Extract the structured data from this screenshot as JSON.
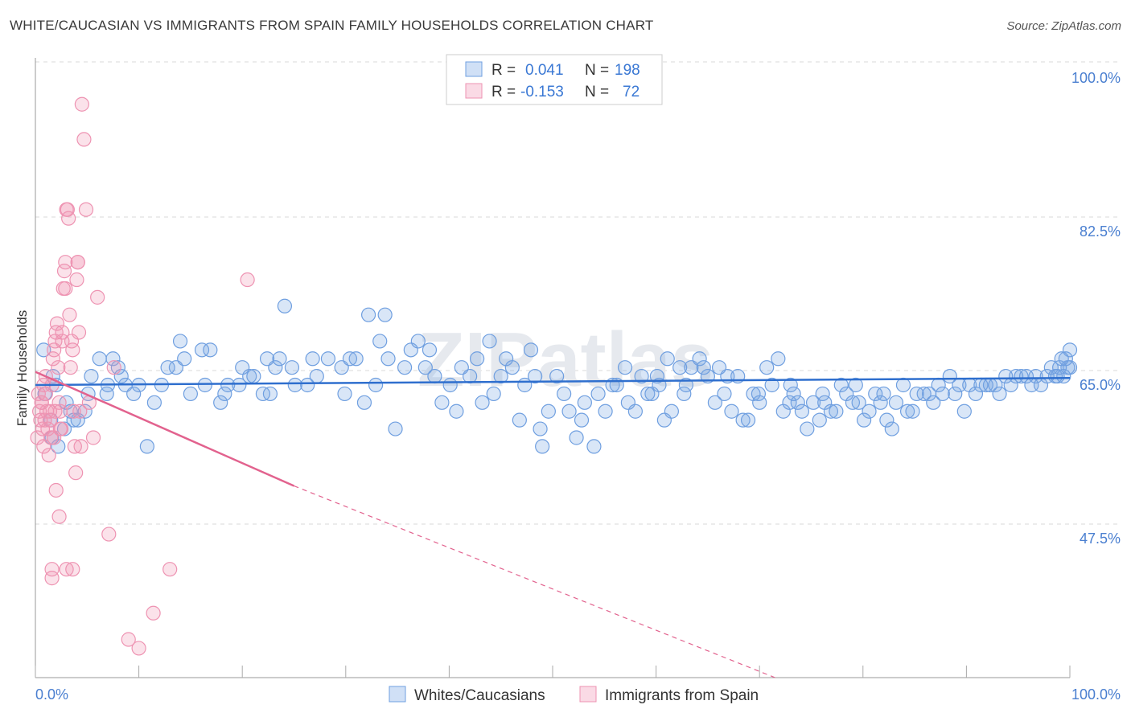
{
  "title": "WHITE/CAUCASIAN VS IMMIGRANTS FROM SPAIN FAMILY HOUSEHOLDS CORRELATION CHART",
  "source": "Source: ZipAtlas.com",
  "watermark": "ZIPatlas",
  "colors": {
    "blue_fill": "rgba(120,166,228,0.28)",
    "blue_stroke": "#6f9fe0",
    "blue_line": "#2f6fce",
    "pink_fill": "rgba(240,150,180,0.28)",
    "pink_stroke": "#ee93b2",
    "pink_line": "#e2628e",
    "grid": "#d9d9d9",
    "axis_label": "#4a7fd0"
  },
  "legend": {
    "rows": [
      {
        "r_label": "R =",
        "r_value": "0.041",
        "n_label": "N =",
        "n_value": "198",
        "series": "blue"
      },
      {
        "r_label": "R =",
        "r_value": "-0.153",
        "n_label": "N =",
        "n_value": "72",
        "series": "pink"
      }
    ]
  },
  "bottom_legend": [
    "Whites/Caucasians",
    "Immigrants from Spain"
  ],
  "chart_data": {
    "type": "scatter",
    "title": "WHITE/CAUCASIAN VS IMMIGRANTS FROM SPAIN FAMILY HOUSEHOLDS CORRELATION CHART",
    "xlabel": "",
    "ylabel": "Family Households",
    "xlim": [
      0,
      100
    ],
    "ylim": [
      30,
      100
    ],
    "x_tick_labels": [
      "0.0%",
      "100.0%"
    ],
    "y_tick_labels": [
      "100.0%",
      "82.5%",
      "65.0%",
      "47.5%"
    ],
    "y_ticks": [
      100,
      82.5,
      65,
      47.5
    ],
    "grid": true,
    "legend_position": "top-center",
    "series": [
      {
        "name": "Whites/Caucasians",
        "color": "blue",
        "R": 0.041,
        "N": 198,
        "trend": {
          "x": [
            0,
            100
          ],
          "y": [
            65.0,
            65.8
          ]
        },
        "points": [
          [
            0.8,
            69
          ],
          [
            0.9,
            64
          ],
          [
            1.5,
            61
          ],
          [
            1.6,
            59
          ],
          [
            1.7,
            66
          ],
          [
            2.0,
            65
          ],
          [
            2.2,
            58
          ],
          [
            2.8,
            60
          ],
          [
            3.0,
            63
          ],
          [
            3.4,
            62
          ],
          [
            3.7,
            61
          ],
          [
            4.1,
            61
          ],
          [
            4.8,
            62
          ],
          [
            5.1,
            64
          ],
          [
            5.4,
            66
          ],
          [
            6.2,
            68
          ],
          [
            6.9,
            64
          ],
          [
            7.0,
            65
          ],
          [
            7.5,
            68
          ],
          [
            8.0,
            67
          ],
          [
            8.3,
            66
          ],
          [
            8.7,
            65
          ],
          [
            9.5,
            64
          ],
          [
            10.0,
            65
          ],
          [
            10.8,
            58
          ],
          [
            11.5,
            63
          ],
          [
            12.2,
            65
          ],
          [
            12.8,
            67
          ],
          [
            13.6,
            67
          ],
          [
            14.0,
            70
          ],
          [
            14.4,
            68
          ],
          [
            15.0,
            64
          ],
          [
            16.1,
            69
          ],
          [
            16.4,
            65
          ],
          [
            16.9,
            69
          ],
          [
            17.9,
            63
          ],
          [
            18.3,
            64
          ],
          [
            18.6,
            65
          ],
          [
            19.7,
            65
          ],
          [
            20.0,
            67
          ],
          [
            20.7,
            66
          ],
          [
            21.1,
            66
          ],
          [
            22.0,
            64
          ],
          [
            22.4,
            68
          ],
          [
            22.7,
            64
          ],
          [
            23.2,
            67
          ],
          [
            23.6,
            68
          ],
          [
            24.1,
            74
          ],
          [
            24.8,
            67
          ],
          [
            25.1,
            65
          ],
          [
            26.3,
            65
          ],
          [
            26.8,
            68
          ],
          [
            27.2,
            66
          ],
          [
            28.3,
            68
          ],
          [
            29.6,
            67
          ],
          [
            29.9,
            64
          ],
          [
            30.4,
            68
          ],
          [
            31.0,
            68
          ],
          [
            31.8,
            63
          ],
          [
            32.2,
            73
          ],
          [
            32.9,
            65
          ],
          [
            33.3,
            70
          ],
          [
            33.8,
            73
          ],
          [
            34.1,
            68
          ],
          [
            34.8,
            60
          ],
          [
            35.7,
            67
          ],
          [
            36.3,
            69
          ],
          [
            37.0,
            70
          ],
          [
            37.7,
            67
          ],
          [
            38.1,
            69
          ],
          [
            38.6,
            66
          ],
          [
            39.3,
            63
          ],
          [
            40.1,
            65
          ],
          [
            40.7,
            62
          ],
          [
            41.2,
            67
          ],
          [
            42.0,
            66
          ],
          [
            42.7,
            68
          ],
          [
            43.2,
            63
          ],
          [
            43.9,
            70
          ],
          [
            44.3,
            64
          ],
          [
            45.0,
            66
          ],
          [
            45.5,
            68
          ],
          [
            46.1,
            67
          ],
          [
            46.8,
            61
          ],
          [
            47.3,
            65
          ],
          [
            47.9,
            69
          ],
          [
            48.3,
            66
          ],
          [
            48.8,
            60
          ],
          [
            49.0,
            58
          ],
          [
            49.6,
            62
          ],
          [
            50.4,
            66
          ],
          [
            51.1,
            64
          ],
          [
            51.6,
            62
          ],
          [
            52.3,
            59
          ],
          [
            52.8,
            61
          ],
          [
            53.1,
            63
          ],
          [
            54.0,
            58
          ],
          [
            54.4,
            64
          ],
          [
            55.1,
            62
          ],
          [
            55.8,
            65
          ],
          [
            56.2,
            65
          ],
          [
            57.0,
            67
          ],
          [
            57.3,
            63
          ],
          [
            58.0,
            62
          ],
          [
            58.6,
            66
          ],
          [
            59.2,
            64
          ],
          [
            59.6,
            64
          ],
          [
            60.3,
            65
          ],
          [
            60.8,
            61
          ],
          [
            61.1,
            68
          ],
          [
            61.5,
            62
          ],
          [
            62.3,
            67
          ],
          [
            62.7,
            64
          ],
          [
            63.4,
            67
          ],
          [
            64.2,
            68
          ],
          [
            64.6,
            67
          ],
          [
            65.0,
            66
          ],
          [
            65.7,
            63
          ],
          [
            66.1,
            67
          ],
          [
            66.6,
            64
          ],
          [
            67.3,
            62
          ],
          [
            67.9,
            66
          ],
          [
            68.4,
            61
          ],
          [
            68.9,
            61
          ],
          [
            69.4,
            64
          ],
          [
            70.0,
            63
          ],
          [
            70.7,
            67
          ],
          [
            71.2,
            65
          ],
          [
            71.8,
            68
          ],
          [
            72.3,
            62
          ],
          [
            72.9,
            63
          ],
          [
            73.3,
            64
          ],
          [
            73.7,
            63
          ],
          [
            74.1,
            62
          ],
          [
            74.6,
            60
          ],
          [
            75.2,
            63
          ],
          [
            75.8,
            61
          ],
          [
            76.3,
            63
          ],
          [
            76.9,
            62
          ],
          [
            77.4,
            62
          ],
          [
            77.9,
            65
          ],
          [
            78.4,
            64
          ],
          [
            79.0,
            63
          ],
          [
            79.6,
            63
          ],
          [
            80.1,
            61
          ],
          [
            80.6,
            62
          ],
          [
            81.2,
            64
          ],
          [
            81.7,
            63
          ],
          [
            82.3,
            61
          ],
          [
            82.8,
            60
          ],
          [
            83.2,
            63
          ],
          [
            83.9,
            65
          ],
          [
            84.3,
            62
          ],
          [
            84.8,
            62
          ],
          [
            85.2,
            64
          ],
          [
            85.9,
            64
          ],
          [
            86.4,
            64
          ],
          [
            86.8,
            63
          ],
          [
            87.3,
            65
          ],
          [
            87.7,
            64
          ],
          [
            88.4,
            66
          ],
          [
            88.9,
            64
          ],
          [
            89.3,
            65
          ],
          [
            89.8,
            62
          ],
          [
            90.3,
            65
          ],
          [
            90.9,
            64
          ],
          [
            91.4,
            65
          ],
          [
            91.9,
            65
          ],
          [
            92.3,
            65
          ],
          [
            92.8,
            65
          ],
          [
            93.2,
            64
          ],
          [
            93.8,
            66
          ],
          [
            94.3,
            65
          ],
          [
            94.8,
            66
          ],
          [
            95.3,
            66
          ],
          [
            95.8,
            66
          ],
          [
            96.3,
            65
          ],
          [
            96.7,
            66
          ],
          [
            97.2,
            65
          ],
          [
            97.8,
            66
          ],
          [
            98.2,
            67
          ],
          [
            98.6,
            66
          ],
          [
            99.0,
            67
          ],
          [
            99.4,
            66
          ],
          [
            99.8,
            67
          ],
          [
            100.0,
            67
          ],
          [
            100.0,
            69
          ],
          [
            99.6,
            68
          ],
          [
            99.2,
            68
          ],
          [
            98.8,
            66
          ],
          [
            60.1,
            66
          ],
          [
            62.9,
            65
          ],
          [
            66.9,
            66
          ],
          [
            69.9,
            64
          ],
          [
            73.0,
            65
          ],
          [
            76.1,
            64
          ],
          [
            79.3,
            65
          ],
          [
            82.0,
            64
          ]
        ]
      },
      {
        "name": "Immigrants from Spain",
        "color": "pink",
        "R": -0.153,
        "N": 72,
        "trend": {
          "x": [
            0,
            25
          ],
          "y": [
            66.5,
            53.5
          ]
        },
        "trend_dashed": {
          "x": [
            25,
            71.5
          ],
          "y": [
            53.5,
            29.5
          ]
        },
        "points": [
          [
            0.2,
            59
          ],
          [
            0.3,
            64
          ],
          [
            0.4,
            62
          ],
          [
            0.5,
            61
          ],
          [
            0.6,
            63
          ],
          [
            0.7,
            60
          ],
          [
            0.8,
            58
          ],
          [
            0.9,
            61
          ],
          [
            1.0,
            64
          ],
          [
            1.1,
            62
          ],
          [
            1.2,
            60
          ],
          [
            1.3,
            57
          ],
          [
            1.4,
            62
          ],
          [
            1.5,
            59
          ],
          [
            1.6,
            65
          ],
          [
            1.7,
            68
          ],
          [
            1.8,
            69
          ],
          [
            1.9,
            70
          ],
          [
            2.0,
            71
          ],
          [
            2.1,
            72
          ],
          [
            2.2,
            67
          ],
          [
            2.3,
            63
          ],
          [
            2.4,
            62
          ],
          [
            2.5,
            60
          ],
          [
            2.6,
            71
          ],
          [
            2.7,
            76
          ],
          [
            2.8,
            78
          ],
          [
            2.9,
            79
          ],
          [
            3.0,
            85
          ],
          [
            3.1,
            85
          ],
          [
            3.2,
            84
          ],
          [
            3.3,
            73
          ],
          [
            3.4,
            67
          ],
          [
            3.5,
            70
          ],
          [
            3.6,
            69
          ],
          [
            3.7,
            62
          ],
          [
            3.8,
            58
          ],
          [
            3.9,
            55
          ],
          [
            4.0,
            77
          ],
          [
            4.1,
            79
          ],
          [
            4.2,
            71
          ],
          [
            4.3,
            62
          ],
          [
            4.4,
            58
          ],
          [
            4.5,
            97
          ],
          [
            4.7,
            93
          ],
          [
            4.9,
            85
          ],
          [
            5.2,
            63
          ],
          [
            5.6,
            59
          ],
          [
            6.0,
            75
          ],
          [
            7.1,
            48
          ],
          [
            7.6,
            67
          ],
          [
            9.0,
            36
          ],
          [
            10.0,
            35
          ],
          [
            11.4,
            39
          ],
          [
            13.0,
            44
          ],
          [
            20.5,
            77
          ],
          [
            2.0,
            53
          ],
          [
            2.3,
            50
          ],
          [
            1.6,
            44
          ],
          [
            1.6,
            43
          ],
          [
            3.0,
            44
          ],
          [
            3.6,
            44
          ],
          [
            4.1,
            79
          ],
          [
            2.6,
            70
          ],
          [
            1.8,
            59
          ],
          [
            2.9,
            76
          ],
          [
            1.0,
            66
          ],
          [
            0.8,
            65
          ],
          [
            0.6,
            63
          ],
          [
            1.4,
            61
          ],
          [
            1.9,
            62
          ],
          [
            2.4,
            60
          ]
        ]
      }
    ]
  }
}
